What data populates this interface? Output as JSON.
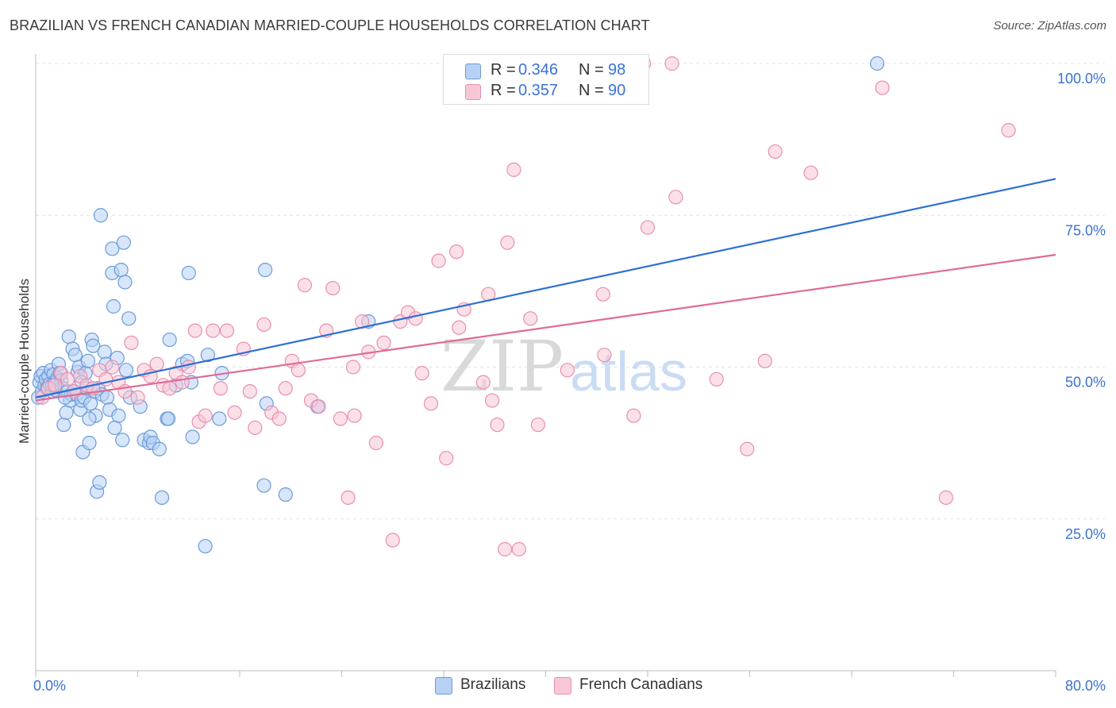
{
  "title": "BRAZILIAN VS FRENCH CANADIAN MARRIED-COUPLE HOUSEHOLDS CORRELATION CHART",
  "source": "Source: ZipAtlas.com",
  "watermark": {
    "zip": "ZIP",
    "atlas": "atlas"
  },
  "legend": {
    "r_label": "R =",
    "n_label": "N =",
    "series": [
      {
        "name": "Brazilians",
        "r": "0.346",
        "n": "98"
      },
      {
        "name": "French Canadians",
        "r": "0.357",
        "n": "90"
      }
    ]
  },
  "chart_data": {
    "type": "scatter",
    "title": "BRAZILIAN VS FRENCH CANADIAN MARRIED-COUPLE HOUSEHOLDS CORRELATION CHART",
    "xlabel": "",
    "ylabel": "Married-couple Households",
    "xlim": [
      0,
      80
    ],
    "ylim": [
      0,
      100
    ],
    "x_tick_labels": [
      "0.0%",
      "80.0%"
    ],
    "y_ticks": [
      25,
      50,
      75,
      100
    ],
    "y_tick_labels": [
      "25.0%",
      "50.0%",
      "75.0%",
      "100.0%"
    ],
    "grid": true,
    "legend_position": "top-center",
    "colors": {
      "Brazilians": {
        "fill": "#b7d1f5",
        "stroke": "#6b9bd8",
        "line": "#2f6fd4"
      },
      "French Canadians": {
        "fill": "#f8c7d6",
        "stroke": "#e88fae",
        "line": "#e06b95"
      },
      "axis_label": "#3a72d6",
      "grid": "#e3e3e3"
    },
    "series": [
      {
        "name": "Brazilians",
        "r": 0.346,
        "n": 98,
        "trend": {
          "x": [
            0,
            80
          ],
          "y": [
            45,
            81
          ]
        },
        "points": [
          [
            0.2,
            45
          ],
          [
            0.3,
            47.5
          ],
          [
            0.4,
            48.5
          ],
          [
            0.5,
            46
          ],
          [
            0.6,
            49
          ],
          [
            0.7,
            47
          ],
          [
            0.8,
            48
          ],
          [
            0.9,
            46.5
          ],
          [
            1.0,
            48.5
          ],
          [
            1.1,
            47.2
          ],
          [
            1.2,
            49.5
          ],
          [
            1.3,
            46
          ],
          [
            1.4,
            48.8
          ],
          [
            1.5,
            47.5
          ],
          [
            1.6,
            46.2
          ],
          [
            1.7,
            48.2
          ],
          [
            1.8,
            50.5
          ],
          [
            1.9,
            49
          ],
          [
            2.0,
            47.8
          ],
          [
            2.1,
            46.5
          ],
          [
            2.2,
            40.5
          ],
          [
            2.4,
            42.5
          ],
          [
            2.5,
            46
          ],
          [
            2.6,
            55
          ],
          [
            2.7,
            44.5
          ],
          [
            2.8,
            45.5
          ],
          [
            2.9,
            53
          ],
          [
            3.0,
            46
          ],
          [
            3.1,
            52
          ],
          [
            3.2,
            45.5
          ],
          [
            3.3,
            49.2
          ],
          [
            3.4,
            50
          ],
          [
            3.5,
            43
          ],
          [
            3.6,
            44.5
          ],
          [
            3.7,
            36
          ],
          [
            3.8,
            45
          ],
          [
            3.9,
            49
          ],
          [
            4.0,
            46.5
          ],
          [
            4.1,
            51
          ],
          [
            4.2,
            37.5
          ],
          [
            4.3,
            44
          ],
          [
            4.4,
            54.5
          ],
          [
            4.5,
            53.5
          ],
          [
            4.6,
            46
          ],
          [
            4.7,
            42
          ],
          [
            4.8,
            29.5
          ],
          [
            4.9,
            46.5
          ],
          [
            5.0,
            31
          ],
          [
            5.1,
            75
          ],
          [
            5.2,
            45.5
          ],
          [
            5.4,
            52.5
          ],
          [
            5.5,
            50.5
          ],
          [
            5.6,
            45
          ],
          [
            5.8,
            43
          ],
          [
            6.0,
            69.5
          ],
          [
            6.0,
            65.5
          ],
          [
            6.1,
            60
          ],
          [
            6.2,
            40
          ],
          [
            6.4,
            51.5
          ],
          [
            6.5,
            42
          ],
          [
            6.7,
            66
          ],
          [
            6.8,
            38
          ],
          [
            6.9,
            70.5
          ],
          [
            7.0,
            64
          ],
          [
            7.1,
            49.5
          ],
          [
            7.3,
            58
          ],
          [
            7.4,
            45
          ],
          [
            8.2,
            43.5
          ],
          [
            8.5,
            38
          ],
          [
            8.9,
            37.5
          ],
          [
            9.0,
            38.5
          ],
          [
            9.2,
            37.5
          ],
          [
            9.7,
            36.5
          ],
          [
            9.9,
            28.5
          ],
          [
            10.3,
            41.5
          ],
          [
            10.4,
            41.5
          ],
          [
            10.5,
            54.5
          ],
          [
            11.0,
            47
          ],
          [
            11.5,
            50.5
          ],
          [
            11.9,
            51
          ],
          [
            12.0,
            65.5
          ],
          [
            12.2,
            47.5
          ],
          [
            12.3,
            38.5
          ],
          [
            13.3,
            20.5
          ],
          [
            13.5,
            52
          ],
          [
            14.4,
            41.5
          ],
          [
            14.6,
            49
          ],
          [
            17.9,
            30.5
          ],
          [
            18.0,
            66
          ],
          [
            18.1,
            44
          ],
          [
            19.6,
            29
          ],
          [
            22.1,
            43.5
          ],
          [
            26.1,
            57.5
          ],
          [
            66.0,
            100
          ],
          [
            1.3,
            47
          ],
          [
            2.3,
            45
          ],
          [
            3.6,
            47.5
          ],
          [
            4.2,
            41.5
          ]
        ]
      },
      {
        "name": "French Canadians",
        "r": 0.357,
        "n": 90,
        "trend": {
          "x": [
            0,
            80
          ],
          "y": [
            44.5,
            68.5
          ]
        },
        "points": [
          [
            0.5,
            45
          ],
          [
            1.0,
            46.5
          ],
          [
            1.5,
            47
          ],
          [
            2.0,
            49
          ],
          [
            2.5,
            48
          ],
          [
            3.0,
            46
          ],
          [
            3.5,
            48.5
          ],
          [
            4.0,
            47
          ],
          [
            4.5,
            46.5
          ],
          [
            5.0,
            49.5
          ],
          [
            5.5,
            48
          ],
          [
            6.0,
            50
          ],
          [
            6.5,
            47.5
          ],
          [
            7.0,
            46
          ],
          [
            7.5,
            54
          ],
          [
            8.0,
            45
          ],
          [
            8.5,
            49.5
          ],
          [
            9.0,
            48.5
          ],
          [
            9.5,
            50.5
          ],
          [
            10.0,
            47
          ],
          [
            10.5,
            46.5
          ],
          [
            11.0,
            49
          ],
          [
            11.5,
            47.5
          ],
          [
            12.0,
            50
          ],
          [
            12.5,
            56
          ],
          [
            12.8,
            41
          ],
          [
            13.3,
            42
          ],
          [
            13.9,
            56
          ],
          [
            14.5,
            46.5
          ],
          [
            15.0,
            56
          ],
          [
            15.6,
            42.5
          ],
          [
            16.3,
            53
          ],
          [
            16.8,
            46
          ],
          [
            17.2,
            40
          ],
          [
            17.9,
            57
          ],
          [
            18.5,
            42.5
          ],
          [
            19.1,
            41.5
          ],
          [
            19.6,
            46.5
          ],
          [
            20.1,
            51
          ],
          [
            20.6,
            49.5
          ],
          [
            21.1,
            63.5
          ],
          [
            21.6,
            44.5
          ],
          [
            22.2,
            43.5
          ],
          [
            22.8,
            56
          ],
          [
            23.3,
            63
          ],
          [
            23.9,
            41.5
          ],
          [
            24.5,
            28.5
          ],
          [
            24.9,
            50
          ],
          [
            25.0,
            42
          ],
          [
            25.6,
            57.5
          ],
          [
            26.1,
            52.5
          ],
          [
            26.7,
            37.5
          ],
          [
            27.3,
            54
          ],
          [
            28.0,
            21.5
          ],
          [
            28.6,
            57.5
          ],
          [
            29.2,
            59
          ],
          [
            29.8,
            58
          ],
          [
            30.3,
            49
          ],
          [
            31.0,
            44
          ],
          [
            31.6,
            67.5
          ],
          [
            32.2,
            35
          ],
          [
            33.0,
            69
          ],
          [
            33.2,
            56.5
          ],
          [
            33.6,
            59.5
          ],
          [
            35.1,
            47.5
          ],
          [
            35.5,
            62
          ],
          [
            35.8,
            44.5
          ],
          [
            36.2,
            40.5
          ],
          [
            36.8,
            20
          ],
          [
            37.0,
            70.5
          ],
          [
            37.5,
            82.5
          ],
          [
            37.9,
            20
          ],
          [
            38.8,
            58
          ],
          [
            39.4,
            40.5
          ],
          [
            41.7,
            49.5
          ],
          [
            44.5,
            62
          ],
          [
            44.6,
            52
          ],
          [
            46.9,
            42
          ],
          [
            47.7,
            100
          ],
          [
            48.0,
            73
          ],
          [
            49.9,
            100
          ],
          [
            50.2,
            78
          ],
          [
            53.4,
            48
          ],
          [
            55.8,
            36.5
          ],
          [
            57.2,
            51
          ],
          [
            58.0,
            85.5
          ],
          [
            60.8,
            82
          ],
          [
            66.4,
            96
          ],
          [
            71.4,
            28.5
          ],
          [
            76.3,
            89
          ]
        ]
      }
    ]
  }
}
